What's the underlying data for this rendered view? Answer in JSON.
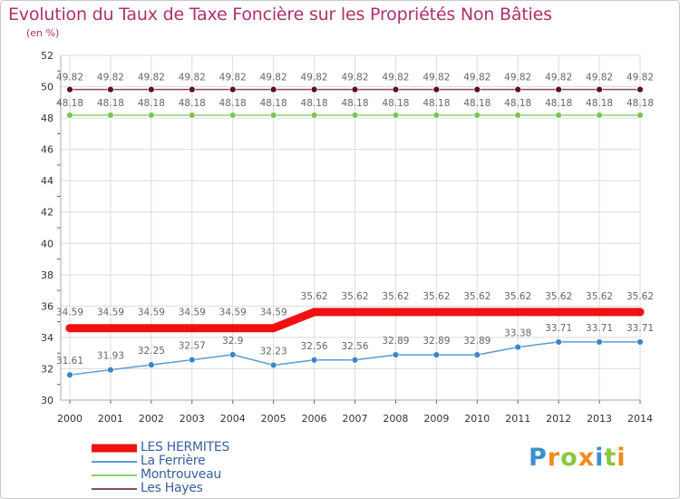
{
  "header": {
    "title": "Evolution du Taux de Taxe Foncière sur les Propriétés Non Bâties",
    "subtitle": "(en %)"
  },
  "logo": {
    "letters": [
      "P",
      "r",
      "o",
      "x",
      "i",
      "t",
      "i"
    ],
    "colors": [
      "#3b8fd0",
      "#f28a1e",
      "#8cc63f",
      "#f28a1e",
      "#3b8fd0",
      "#8cc63f",
      "#f28a1e"
    ]
  },
  "chart_data": {
    "type": "line",
    "x": [
      2000,
      2001,
      2002,
      2003,
      2004,
      2005,
      2006,
      2007,
      2008,
      2009,
      2010,
      2011,
      2012,
      2013,
      2014
    ],
    "ylim": [
      30,
      52
    ],
    "yticks": [
      30,
      32,
      34,
      36,
      38,
      40,
      42,
      44,
      46,
      48,
      50,
      52
    ],
    "grid": true,
    "legend_position": "bottom-left",
    "series": [
      {
        "name": "LES HERMITES",
        "color": "#ee1111",
        "values": [
          34.59,
          34.59,
          34.59,
          34.59,
          34.59,
          34.59,
          35.62,
          35.62,
          35.62,
          35.62,
          35.62,
          35.62,
          35.62,
          35.62,
          35.62
        ],
        "labels": [
          "34.59",
          "34.59",
          "34.59",
          "34.59",
          "34.59",
          "34.59",
          "35.62",
          "35.62",
          "35.62",
          "35.62",
          "35.62",
          "35.62",
          "35.62",
          "35.62",
          "35.62"
        ]
      },
      {
        "name": "La Ferrière",
        "color": "#5b9bd5",
        "values": [
          31.61,
          31.93,
          32.25,
          32.57,
          32.9,
          32.23,
          32.56,
          32.56,
          32.89,
          32.89,
          32.89,
          33.38,
          33.71,
          33.71,
          33.71
        ],
        "labels": [
          "31.61",
          "31.93",
          "32.25",
          "32.57",
          "32.9",
          "32.23",
          "32.56",
          "32.56",
          "32.89",
          "32.89",
          "32.89",
          "33.38",
          "33.71",
          "33.71",
          "33.71"
        ]
      },
      {
        "name": "Montrouveau",
        "color": "#8ed16b",
        "values": [
          48.18,
          48.18,
          48.18,
          48.18,
          48.18,
          48.18,
          48.18,
          48.18,
          48.18,
          48.18,
          48.18,
          48.18,
          48.18,
          48.18,
          48.18
        ],
        "labels": [
          "48.18",
          "48.18",
          "48.18",
          "48.18",
          "48.18",
          "48.18",
          "48.18",
          "48.18",
          "48.18",
          "48.18",
          "48.18",
          "48.18",
          "48.18",
          "48.18",
          "48.18"
        ]
      },
      {
        "name": "Les Hayes",
        "color": "#8b4a5a",
        "values": [
          49.82,
          49.82,
          49.82,
          49.82,
          49.82,
          49.82,
          49.82,
          49.82,
          49.82,
          49.82,
          49.82,
          49.82,
          49.82,
          49.82,
          49.82
        ],
        "labels": [
          "49.82",
          "49.82",
          "49.82",
          "49.82",
          "49.82",
          "49.82",
          "49.82",
          "49.82",
          "49.82",
          "49.82",
          "49.82",
          "49.82",
          "49.82",
          "49.82",
          "49.82"
        ]
      }
    ]
  }
}
